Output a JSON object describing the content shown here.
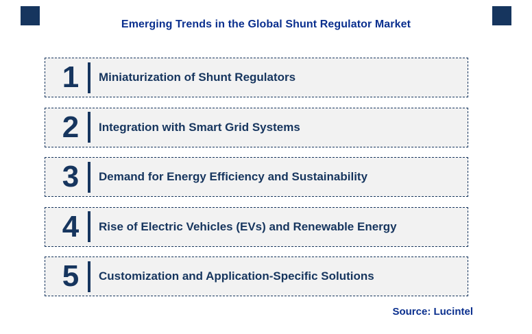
{
  "title": "Emerging Trends in the Global Shunt Regulator Market",
  "source": "Source: Lucintel",
  "trends": [
    {
      "number": "1",
      "label": "Miniaturization of Shunt Regulators"
    },
    {
      "number": "2",
      "label": "Integration with Smart Grid Systems"
    },
    {
      "number": "3",
      "label": "Demand for Energy Efficiency and Sustainability"
    },
    {
      "number": "4",
      "label": "Rise of Electric Vehicles (EVs) and Renewable Energy"
    },
    {
      "number": "5",
      "label": "Customization and Application-Specific Solutions"
    }
  ],
  "colors": {
    "title_blue": "#0a2f8e",
    "navy": "#16355e",
    "box_fill": "#f2f2f2",
    "box_border": "#16355e"
  }
}
